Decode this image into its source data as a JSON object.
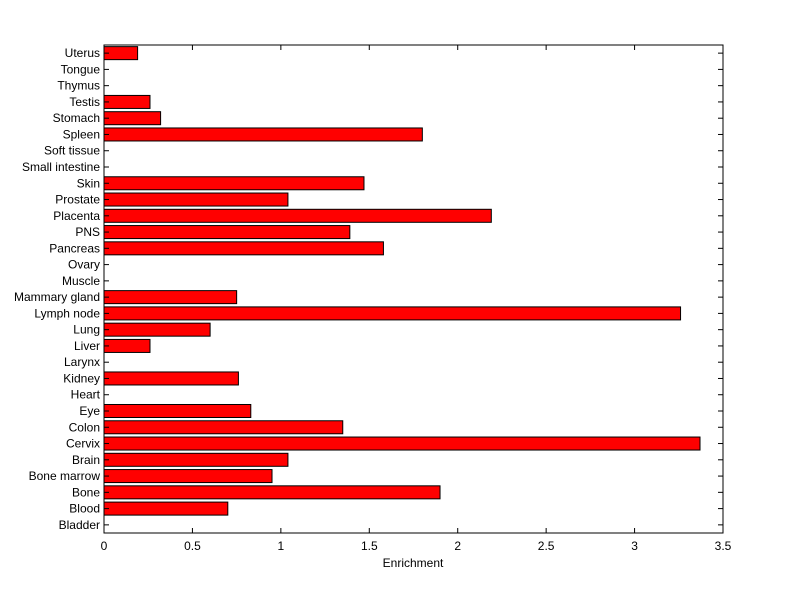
{
  "chart_data": {
    "type": "bar",
    "orientation": "horizontal",
    "xlabel": "Enrichment",
    "ylabel": "",
    "title": "",
    "xlim": [
      0,
      3.5
    ],
    "xticks": [
      0,
      0.5,
      1,
      1.5,
      2,
      2.5,
      3,
      3.5
    ],
    "xtick_labels": [
      "0",
      "0.5",
      "1",
      "1.5",
      "2",
      "2.5",
      "3",
      "3.5"
    ],
    "grid": false,
    "bar_color": "#ff0000",
    "bar_edge_color": "#000000",
    "categories": [
      "Bladder",
      "Blood",
      "Bone",
      "Bone marrow",
      "Brain",
      "Cervix",
      "Colon",
      "Eye",
      "Heart",
      "Kidney",
      "Larynx",
      "Liver",
      "Lung",
      "Lymph node",
      "Mammary gland",
      "Muscle",
      "Ovary",
      "Pancreas",
      "PNS",
      "Placenta",
      "Prostate",
      "Skin",
      "Small intestine",
      "Soft tissue",
      "Spleen",
      "Stomach",
      "Testis",
      "Thymus",
      "Tongue",
      "Uterus"
    ],
    "values": [
      0,
      0.7,
      1.9,
      0.95,
      1.04,
      3.37,
      1.35,
      0.83,
      0,
      0.76,
      0,
      0.26,
      0.6,
      3.26,
      0.75,
      0,
      0,
      1.58,
      1.39,
      2.19,
      1.04,
      1.47,
      0,
      0,
      1.8,
      0.32,
      0.26,
      0,
      0,
      0.19
    ]
  }
}
